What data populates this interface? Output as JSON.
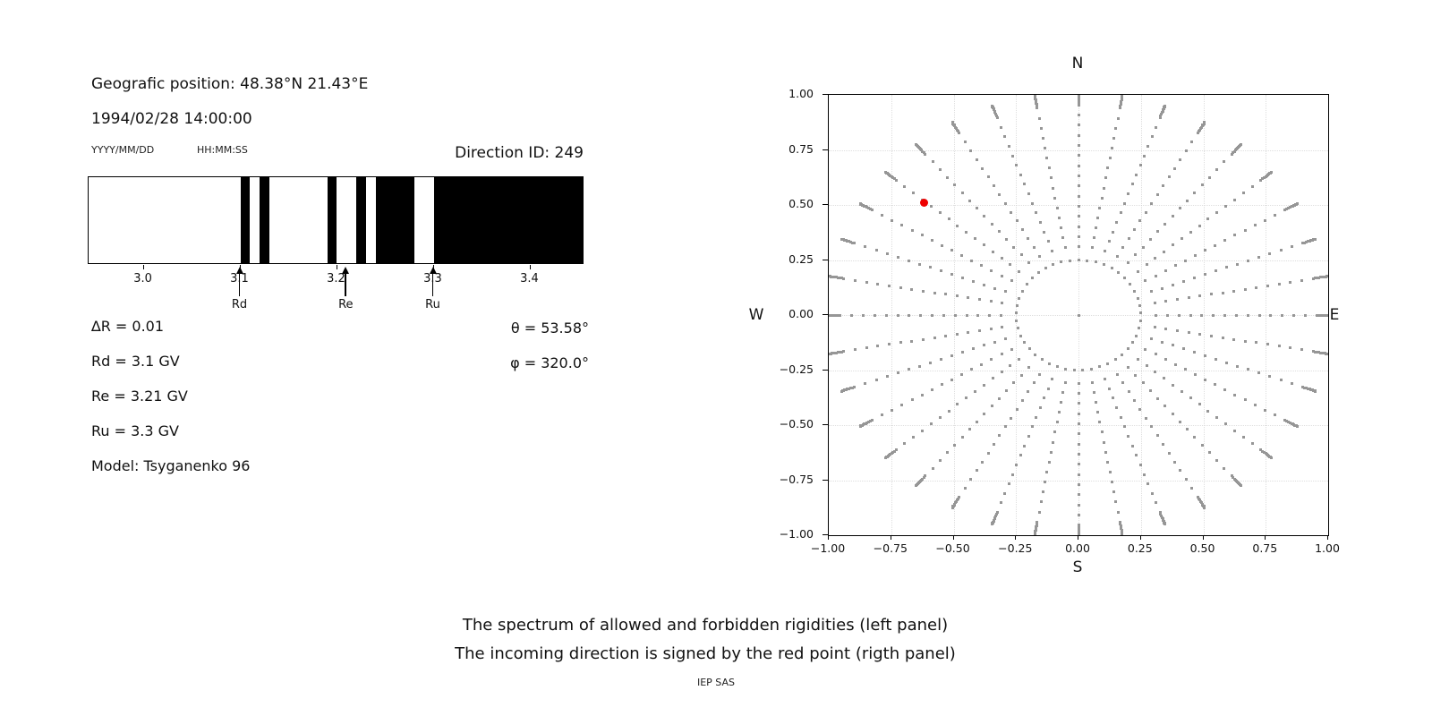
{
  "info": {
    "geographic_position": "Geografic position: 48.38°N 21.43°E",
    "datetime": "1994/02/28 14:00:00",
    "date_format_hint": "YYYY/MM/DD",
    "time_format_hint": "HH:MM:SS",
    "direction_id": "Direction ID: 249"
  },
  "parameters": {
    "delta_r": "∆R = 0.01",
    "rd": "Rd = 3.1 GV",
    "re": "Re = 3.21 GV",
    "ru": "Ru = 3.3 GV",
    "model": "Model: Tsyganenko 96",
    "theta": "θ = 53.58°",
    "phi": "φ = 320.0°"
  },
  "caption": {
    "line1": "The spectrum of allowed and forbidden rigidities (left panel)",
    "line2": "The incoming direction is signed by the red point (rigth panel)",
    "credit": "IEP SAS"
  },
  "chart_data": [
    {
      "type": "barcode-spectrum",
      "description": "Allowed (white) and forbidden (black) rigidity bands in GV",
      "xlim": [
        2.943,
        3.456
      ],
      "xticks": [
        {
          "v": 3.0,
          "label": "3.0"
        },
        {
          "v": 3.1,
          "label": "3.1"
        },
        {
          "v": 3.2,
          "label": "3.2"
        },
        {
          "v": 3.3,
          "label": "3.3"
        },
        {
          "v": 3.4,
          "label": "3.4"
        }
      ],
      "bar_color": "#000000",
      "black_segments_gv": [
        [
          3.1,
          3.11
        ],
        [
          3.12,
          3.13
        ],
        [
          3.19,
          3.2
        ],
        [
          3.22,
          3.23
        ],
        [
          3.24,
          3.28
        ],
        [
          3.3,
          3.456
        ]
      ],
      "arrows": [
        {
          "label": "Rd",
          "gv": 3.1
        },
        {
          "label": "Re",
          "gv": 3.21
        },
        {
          "label": "Ru",
          "gv": 3.3
        }
      ]
    },
    {
      "type": "scatter",
      "description": "Incoming direction sky map: dotted azimuth spokes every 10 deg, zenith ring at r=0.25, red point = incoming direction",
      "compass": {
        "n": "N",
        "s": "S",
        "e": "E",
        "w": "W"
      },
      "xlim": [
        -1,
        1
      ],
      "ylim": [
        -1,
        1
      ],
      "grid": true,
      "xticks": [
        {
          "v": -1.0,
          "label": "−1.00"
        },
        {
          "v": -0.75,
          "label": "−0.75"
        },
        {
          "v": -0.5,
          "label": "−0.50"
        },
        {
          "v": -0.25,
          "label": "−0.25"
        },
        {
          "v": 0.0,
          "label": "0.00"
        },
        {
          "v": 0.25,
          "label": "0.25"
        },
        {
          "v": 0.5,
          "label": "0.50"
        },
        {
          "v": 0.75,
          "label": "0.75"
        },
        {
          "v": 1.0,
          "label": "1.00"
        }
      ],
      "yticks": [
        {
          "v": 1.0,
          "label": "1.00"
        },
        {
          "v": 0.75,
          "label": "0.75"
        },
        {
          "v": 0.5,
          "label": "0.50"
        },
        {
          "v": 0.25,
          "label": "0.25"
        },
        {
          "v": 0.0,
          "label": "0.00"
        },
        {
          "v": -0.25,
          "label": "−0.25"
        },
        {
          "v": -0.5,
          "label": "−0.50"
        },
        {
          "v": -0.75,
          "label": "−0.75"
        },
        {
          "v": -1.0,
          "label": "−1.00"
        }
      ],
      "dot_color": "#969696",
      "spokes": {
        "azimuth_start_deg": 0,
        "azimuth_step_deg": 10,
        "count": 36,
        "r_main": {
          "start": 0.31,
          "step": 0.046,
          "count": 15
        },
        "r_tail": [
          0.963,
          0.971,
          0.978,
          0.985,
          0.991,
          0.996,
          1.0,
          1.004,
          1.007,
          1.01
        ]
      },
      "ring": {
        "radius": 0.25,
        "dot_count": 45
      },
      "center_dot": true,
      "red_point": {
        "x": -0.62,
        "y": 0.512,
        "color": "#ee0000"
      }
    }
  ]
}
